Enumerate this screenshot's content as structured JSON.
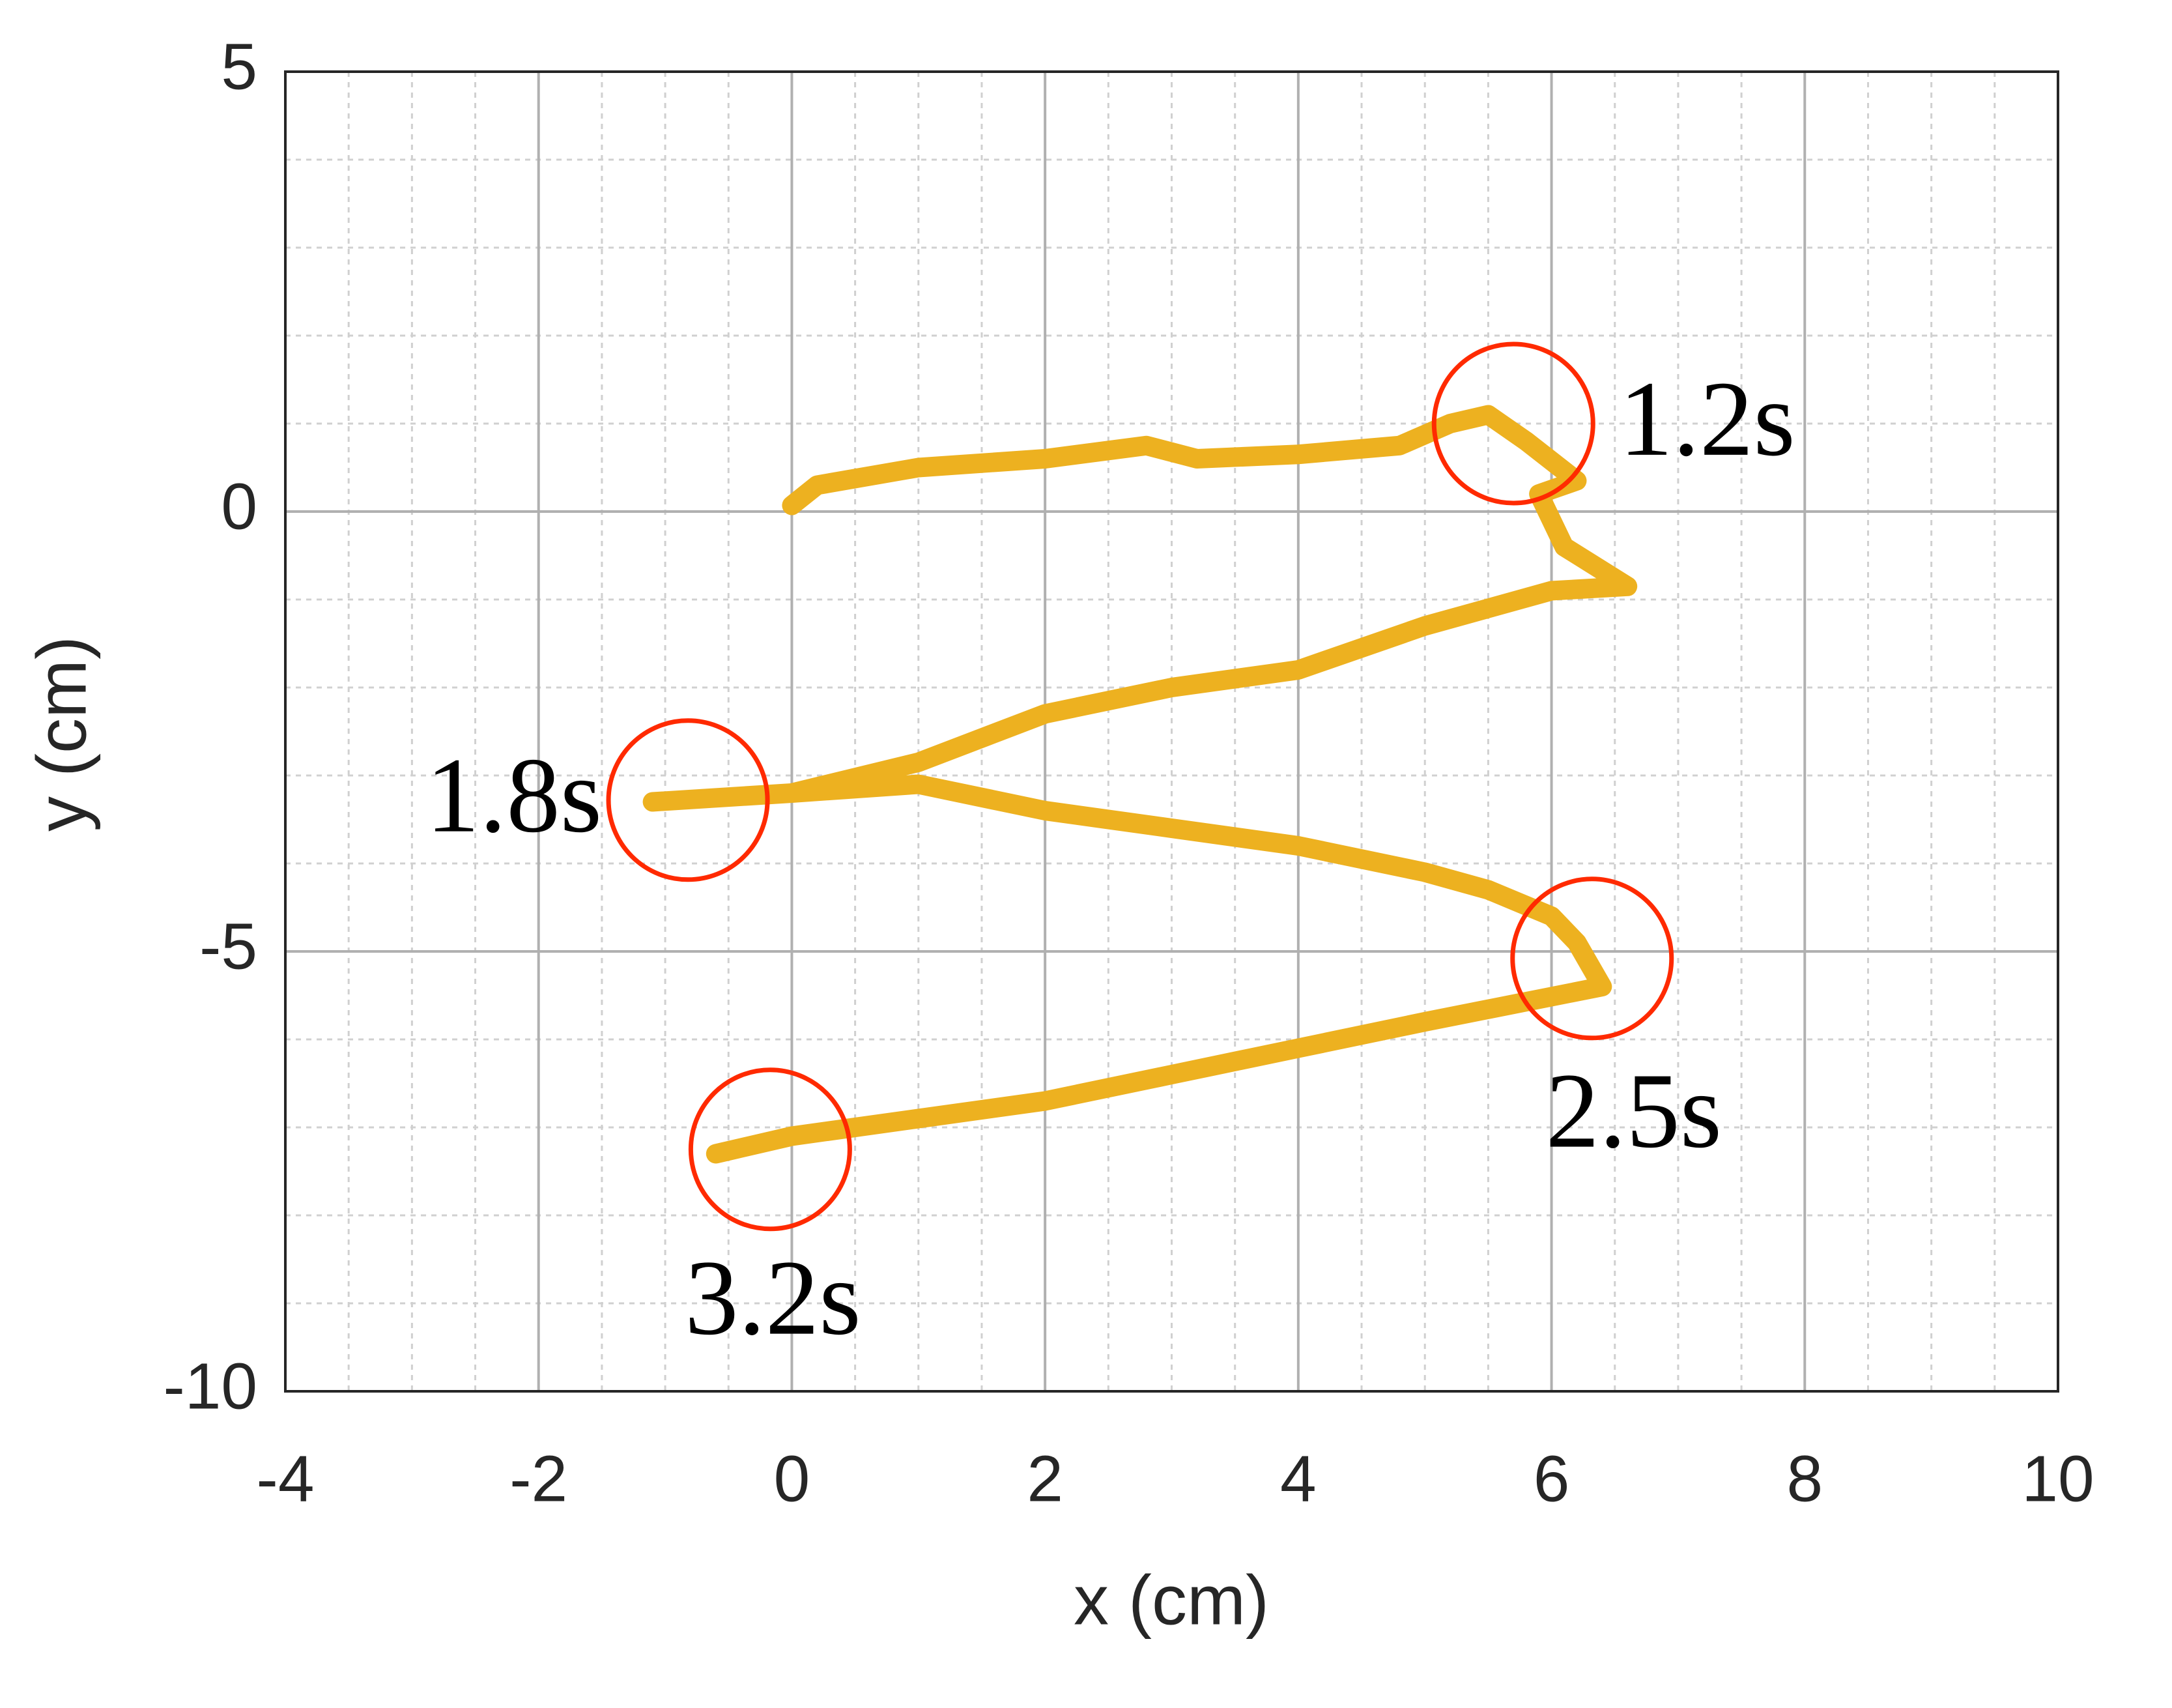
{
  "chart_data": {
    "type": "line",
    "xlabel": "x (cm)",
    "ylabel": "y (cm)",
    "xlim": [
      -4,
      10
    ],
    "ylim": [
      -10,
      5
    ],
    "xticks": [
      -4,
      -2,
      0,
      2,
      4,
      6,
      8,
      10
    ],
    "yticks": [
      -10,
      -5,
      0,
      5
    ],
    "grid": true,
    "minor_grid": true,
    "series": [
      {
        "color": "#edb120",
        "x": [
          0,
          0.2,
          1,
          2,
          2.8,
          3.2,
          4,
          4.8,
          5.2,
          5.5,
          5.8,
          6.2,
          5.9,
          6.1,
          6.6,
          6,
          5,
          4,
          3,
          2,
          1,
          0,
          -1.1,
          0,
          1,
          2,
          3,
          4,
          5,
          5.5,
          6,
          6.2,
          6.4,
          5,
          4,
          3,
          2,
          1,
          0,
          -0.6
        ],
        "values": [
          0.07,
          0.3,
          0.5,
          0.6,
          0.75,
          0.6,
          0.65,
          0.75,
          1.0,
          1.1,
          0.8,
          0.35,
          0.2,
          -0.4,
          -0.85,
          -0.9,
          -1.3,
          -1.8,
          -2.0,
          -2.3,
          -2.85,
          -3.2,
          -3.3,
          -3.2,
          -3.1,
          -3.4,
          -3.6,
          -3.8,
          -4.1,
          -4.3,
          -4.6,
          -4.9,
          -5.4,
          -5.8,
          -6.1,
          -6.4,
          -6.7,
          -6.9,
          -7.1,
          -7.3
        ]
      }
    ],
    "annotations": [
      {
        "text": "1.2s",
        "x": 5.7,
        "y": 1.0,
        "color": "#ff2a00"
      },
      {
        "text": "1.8s",
        "x": -0.82,
        "y": -3.28,
        "color": "#ff2a00"
      },
      {
        "text": "2.5s",
        "x": 6.32,
        "y": -5.08,
        "color": "#ff2a00"
      },
      {
        "text": "3.2s",
        "x": -0.17,
        "y": -7.25,
        "color": "#ff2a00"
      }
    ]
  }
}
